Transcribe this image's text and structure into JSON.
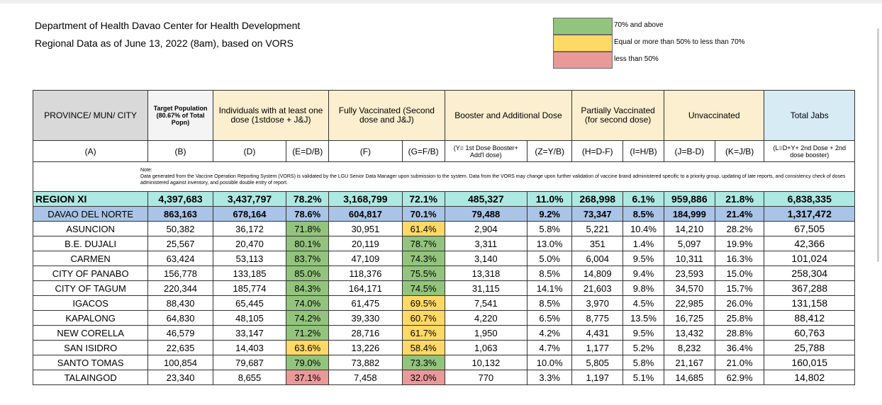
{
  "header": {
    "line1": "Department of Health Davao Center for Health Development",
    "line2": "Regional Data as of June 13, 2022 (8am), based on VORS"
  },
  "legend": [
    {
      "label": "70% and above",
      "color": "#93c47d"
    },
    {
      "label": "Equal or more than 50% to less than 70%",
      "color": "#ffd966"
    },
    {
      "label": "less than 50%",
      "color": "#ea9999"
    }
  ],
  "columns": {
    "province": "PROVINCE/ MUN/ CITY",
    "target": "Target Population (80.67% of Total Popn)",
    "first_dose": "Individuals with at least one dose (1stdose + J&J)",
    "fully": "Fully Vaccinated (Second dose and J&J)",
    "booster": "Booster and Additional Dose",
    "partial": "Partially Vaccinated (for second dose)",
    "unvax": "Unvaccinated",
    "total": "Total Jabs"
  },
  "subheaders": [
    "(A)",
    "(B)",
    "(D)",
    "(E=D/B)",
    "(F)",
    "(G=F/B)",
    "(Y= 1st Dose Booster+ Add'l dose)",
    "(Z=Y/B)",
    "(H=D-F)",
    "(I=H/B)",
    "(J=B-D)",
    "(K=J/B)",
    "(L=D+Y+ 2nd Dose + 2nd dose booster)"
  ],
  "note": {
    "label": "Note:",
    "text": "Data generated from the Vaccine Operation Reporting System (VORS) is validated by the LGU Senior Data Manager upon submission to the system. Data from the VORS may change upon further validation of vaccine brand administered specific to a priority group, updating of late reports, and consistency check of doses administered against inventory, and possible double entry of report."
  },
  "region": [
    "REGION XI",
    "4,397,683",
    "3,437,797",
    "78.2%",
    "3,168,799",
    "72.1%",
    "485,327",
    "11.0%",
    "268,998",
    "6.1%",
    "959,886",
    "21.8%",
    "6,838,335"
  ],
  "province": [
    "DAVAO DEL NORTE",
    "863,163",
    "678,164",
    "78.6%",
    "604,817",
    "70.1%",
    "79,488",
    "9.2%",
    "73,347",
    "8.5%",
    "184,999",
    "21.4%",
    "1,317,472"
  ],
  "rows": [
    {
      "cells": [
        "ASUNCION",
        "50,382",
        "36,172",
        "71.8%",
        "30,951",
        "61.4%",
        "2,904",
        "5.8%",
        "5,221",
        "10.4%",
        "14,210",
        "28.2%",
        "67,505"
      ],
      "e": "g",
      "g": "y"
    },
    {
      "cells": [
        "B.E. DUJALI",
        "25,567",
        "20,470",
        "80.1%",
        "20,119",
        "78.7%",
        "3,311",
        "13.0%",
        "351",
        "1.4%",
        "5,097",
        "19.9%",
        "42,366"
      ],
      "e": "g",
      "g": "g"
    },
    {
      "cells": [
        "CARMEN",
        "63,424",
        "53,113",
        "83.7%",
        "47,109",
        "74.3%",
        "3,140",
        "5.0%",
        "6,004",
        "9.5%",
        "10,311",
        "16.3%",
        "101,024"
      ],
      "e": "g",
      "g": "g"
    },
    {
      "cells": [
        "CITY OF PANABO",
        "156,778",
        "133,185",
        "85.0%",
        "118,376",
        "75.5%",
        "13,318",
        "8.5%",
        "14,809",
        "9.4%",
        "23,593",
        "15.0%",
        "258,304"
      ],
      "e": "g",
      "g": "g"
    },
    {
      "cells": [
        "CITY OF TAGUM",
        "220,344",
        "185,774",
        "84.3%",
        "164,171",
        "74.5%",
        "31,115",
        "14.1%",
        "21,603",
        "9.8%",
        "34,570",
        "15.7%",
        "367,288"
      ],
      "e": "g",
      "g": "g"
    },
    {
      "cells": [
        "IGACOS",
        "88,430",
        "65,445",
        "74.0%",
        "61,475",
        "69.5%",
        "7,541",
        "8.5%",
        "3,970",
        "4.5%",
        "22,985",
        "26.0%",
        "131,158"
      ],
      "e": "g",
      "g": "y"
    },
    {
      "cells": [
        "KAPALONG",
        "64,830",
        "48,105",
        "74.2%",
        "39,330",
        "60.7%",
        "4,220",
        "6.5%",
        "8,775",
        "13.5%",
        "16,725",
        "25.8%",
        "88,412"
      ],
      "e": "g",
      "g": "y"
    },
    {
      "cells": [
        "NEW CORELLA",
        "46,579",
        "33,147",
        "71.2%",
        "28,716",
        "61.7%",
        "1,950",
        "4.2%",
        "4,431",
        "9.5%",
        "13,432",
        "28.8%",
        "60,763"
      ],
      "e": "g",
      "g": "y"
    },
    {
      "cells": [
        "SAN ISIDRO",
        "22,635",
        "14,403",
        "63.6%",
        "13,226",
        "58.4%",
        "1,063",
        "4.7%",
        "1,177",
        "5.2%",
        "8,232",
        "36.4%",
        "25,788"
      ],
      "e": "y",
      "g": "y"
    },
    {
      "cells": [
        "SANTO TOMAS",
        "100,854",
        "79,687",
        "79.0%",
        "73,882",
        "73.3%",
        "10,132",
        "10.0%",
        "5,805",
        "5.8%",
        "21,167",
        "21.0%",
        "160,015"
      ],
      "e": "g",
      "g": "g"
    },
    {
      "cells": [
        "TALAINGOD",
        "23,340",
        "8,655",
        "37.1%",
        "7,458",
        "32.0%",
        "770",
        "3.3%",
        "1,197",
        "5.1%",
        "14,685",
        "62.9%",
        "14,802"
      ],
      "e": "r",
      "g": "r"
    }
  ]
}
